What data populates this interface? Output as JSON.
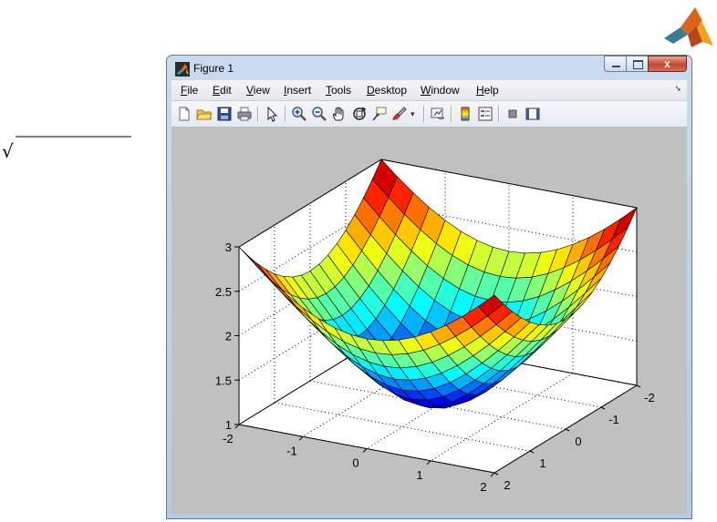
{
  "window": {
    "title": "Figure 1",
    "minimize_label": "minimize",
    "maximize_label": "maximize",
    "close_label": "x"
  },
  "menu": [
    {
      "pre": "",
      "key": "F",
      "post": "ile"
    },
    {
      "pre": "",
      "key": "E",
      "post": "dit"
    },
    {
      "pre": "",
      "key": "V",
      "post": "iew"
    },
    {
      "pre": "",
      "key": "I",
      "post": "nsert"
    },
    {
      "pre": "",
      "key": "T",
      "post": "ools"
    },
    {
      "pre": "",
      "key": "D",
      "post": "esktop"
    },
    {
      "pre": "",
      "key": "W",
      "post": "indow"
    },
    {
      "pre": "",
      "key": "H",
      "post": "elp"
    }
  ],
  "toolbar": [
    "new-figure-icon",
    "open-file-icon",
    "save-icon",
    "print-icon",
    "edit-plot-icon",
    "zoom-in-icon",
    "zoom-out-icon",
    "pan-icon",
    "rotate-3d-icon",
    "data-cursor-icon",
    "brush-icon",
    "link-plot-icon",
    "colorbar-icon",
    "legend-icon",
    "hide-plot-tools-icon",
    "show-plot-tools-icon"
  ],
  "chart_data": {
    "type": "surface",
    "function": "z = sqrt(x^2 + y^2 + 1)",
    "x_ticks": [
      "-2",
      "-1",
      "0",
      "1",
      "2"
    ],
    "y_ticks": [
      "-2",
      "-1",
      "0",
      "1",
      "2"
    ],
    "z_ticks": [
      "1",
      "1.5",
      "2",
      "2.5",
      "3"
    ],
    "xlim": [
      -2,
      2
    ],
    "ylim": [
      -2,
      2
    ],
    "zlim": [
      1,
      3
    ],
    "grid": true,
    "colormap": "jet",
    "mesh_steps": 16
  }
}
